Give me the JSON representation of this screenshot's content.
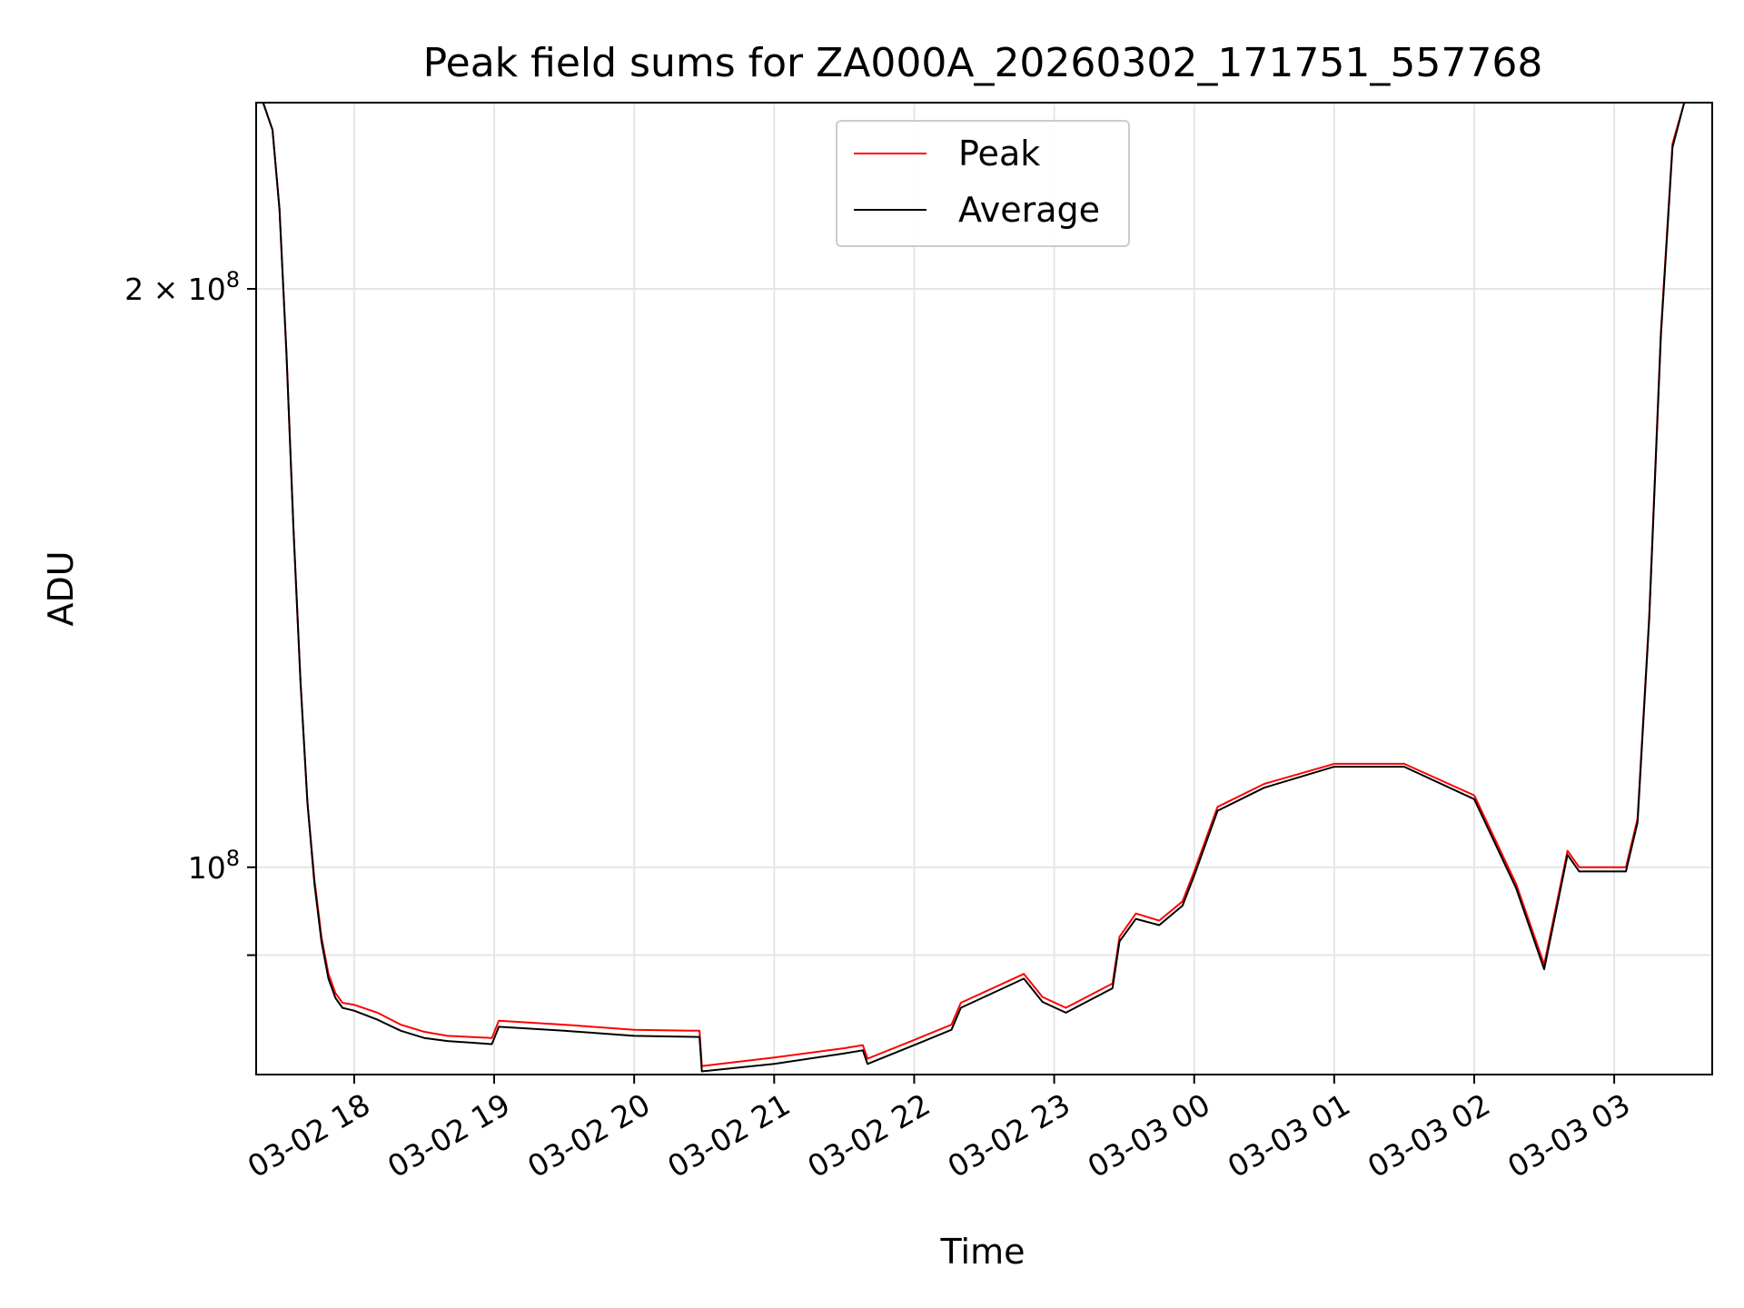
{
  "chart_data": {
    "type": "line",
    "title": "Peak field sums for ZA000A_20260302_171751_557768",
    "xlabel": "Time",
    "ylabel": "ADU",
    "y_scale": "log",
    "ylim": [
      78000000,
      250000000
    ],
    "xlim": [
      "2026-03-02 17:18",
      "2026-03-03 03:42"
    ],
    "x_ticks": [
      "2026-03-02 18:00",
      "2026-03-02 19:00",
      "2026-03-02 20:00",
      "2026-03-02 21:00",
      "2026-03-02 22:00",
      "2026-03-02 23:00",
      "2026-03-03 00:00",
      "2026-03-03 01:00",
      "2026-03-03 02:00",
      "2026-03-03 03:00"
    ],
    "x_tick_labels": [
      "03-02 18",
      "03-02 19",
      "03-02 20",
      "03-02 21",
      "03-02 22",
      "03-02 23",
      "03-03 00",
      "03-03 01",
      "03-03 02",
      "03-03 03"
    ],
    "y_ticks": [
      {
        "value": 200000000,
        "label": "2 × 10⁸"
      },
      {
        "value": 100000000,
        "label": "10⁸"
      },
      {
        "value": 90000000,
        "label": ""
      }
    ],
    "grid": true,
    "legend_position": "top-center",
    "series": [
      {
        "name": "Peak",
        "color": "#ff0000",
        "x": [
          "2026-03-02 17:18",
          "2026-03-02 17:21",
          "2026-03-02 17:25",
          "2026-03-02 17:28",
          "2026-03-02 17:31",
          "2026-03-02 17:34",
          "2026-03-02 17:37",
          "2026-03-02 17:40",
          "2026-03-02 17:43",
          "2026-03-02 17:46",
          "2026-03-02 17:49",
          "2026-03-02 17:52",
          "2026-03-02 17:55",
          "2026-03-02 18:00",
          "2026-03-02 18:10",
          "2026-03-02 18:20",
          "2026-03-02 18:30",
          "2026-03-02 18:40",
          "2026-03-02 18:59",
          "2026-03-02 19:02",
          "2026-03-02 19:30",
          "2026-03-02 20:00",
          "2026-03-02 20:28",
          "2026-03-02 20:29",
          "2026-03-02 21:00",
          "2026-03-02 21:30",
          "2026-03-02 21:38",
          "2026-03-02 21:40",
          "2026-03-02 22:00",
          "2026-03-02 22:16",
          "2026-03-02 22:20",
          "2026-03-02 22:47",
          "2026-03-02 22:55",
          "2026-03-02 23:05",
          "2026-03-02 23:25",
          "2026-03-02 23:28",
          "2026-03-02 23:35",
          "2026-03-02 23:45",
          "2026-03-02 23:55",
          "2026-03-03 00:00",
          "2026-03-03 00:10",
          "2026-03-03 00:30",
          "2026-03-03 01:00",
          "2026-03-03 01:30",
          "2026-03-03 02:00",
          "2026-03-03 02:18",
          "2026-03-03 02:30",
          "2026-03-03 02:40",
          "2026-03-03 02:45",
          "2026-03-03 03:05",
          "2026-03-03 03:10",
          "2026-03-03 03:15",
          "2026-03-03 03:20",
          "2026-03-03 03:25",
          "2026-03-03 03:30",
          "2026-03-03 03:42"
        ],
        "y": [
          250000000,
          250000000,
          242000000,
          220000000,
          185000000,
          150000000,
          125000000,
          108000000,
          98500000,
          92000000,
          88000000,
          86000000,
          85000000,
          84800000,
          84000000,
          82800000,
          82100000,
          81700000,
          81500000,
          83200000,
          82800000,
          82300000,
          82200000,
          78800000,
          79600000,
          80500000,
          80800000,
          79500000,
          81300000,
          82800000,
          85000000,
          88000000,
          85600000,
          84500000,
          87000000,
          92000000,
          94600000,
          93800000,
          96000000,
          99500000,
          107500000,
          110500000,
          113200000,
          113200000,
          109000000,
          98000000,
          89000000,
          102000000,
          100000000,
          100000000,
          106000000,
          135000000,
          190000000,
          238000000,
          250000000,
          250000000
        ]
      },
      {
        "name": "Average",
        "color": "#000000",
        "x": [
          "2026-03-02 17:18",
          "2026-03-02 17:21",
          "2026-03-02 17:25",
          "2026-03-02 17:28",
          "2026-03-02 17:31",
          "2026-03-02 17:34",
          "2026-03-02 17:37",
          "2026-03-02 17:40",
          "2026-03-02 17:43",
          "2026-03-02 17:46",
          "2026-03-02 17:49",
          "2026-03-02 17:52",
          "2026-03-02 17:55",
          "2026-03-02 18:00",
          "2026-03-02 18:10",
          "2026-03-02 18:20",
          "2026-03-02 18:30",
          "2026-03-02 18:40",
          "2026-03-02 18:59",
          "2026-03-02 19:02",
          "2026-03-02 19:30",
          "2026-03-02 20:00",
          "2026-03-02 20:28",
          "2026-03-02 20:29",
          "2026-03-02 21:00",
          "2026-03-02 21:30",
          "2026-03-02 21:38",
          "2026-03-02 21:40",
          "2026-03-02 22:00",
          "2026-03-02 22:16",
          "2026-03-02 22:20",
          "2026-03-02 22:47",
          "2026-03-02 22:55",
          "2026-03-02 23:05",
          "2026-03-02 23:25",
          "2026-03-02 23:28",
          "2026-03-02 23:35",
          "2026-03-02 23:45",
          "2026-03-02 23:55",
          "2026-03-03 00:00",
          "2026-03-03 00:10",
          "2026-03-03 00:30",
          "2026-03-03 01:00",
          "2026-03-03 01:30",
          "2026-03-03 02:00",
          "2026-03-03 02:18",
          "2026-03-03 02:30",
          "2026-03-03 02:40",
          "2026-03-03 02:45",
          "2026-03-03 03:05",
          "2026-03-03 03:10",
          "2026-03-03 03:15",
          "2026-03-03 03:20",
          "2026-03-03 03:25",
          "2026-03-03 03:30",
          "2026-03-03 03:42"
        ],
        "y": [
          250000000,
          250000000,
          242000000,
          220000000,
          185000000,
          150000000,
          125000000,
          108000000,
          98000000,
          91500000,
          87500000,
          85500000,
          84500000,
          84200000,
          83300000,
          82200000,
          81500000,
          81200000,
          80900000,
          82600000,
          82200000,
          81700000,
          81600000,
          78300000,
          79000000,
          80000000,
          80300000,
          79000000,
          80800000,
          82300000,
          84500000,
          87500000,
          85100000,
          84000000,
          86500000,
          91500000,
          94000000,
          93300000,
          95500000,
          99000000,
          107000000,
          110000000,
          112800000,
          112800000,
          108500000,
          97500000,
          88500000,
          101500000,
          99500000,
          99500000,
          105500000,
          134500000,
          189000000,
          237000000,
          250000000,
          250000000
        ]
      }
    ]
  }
}
